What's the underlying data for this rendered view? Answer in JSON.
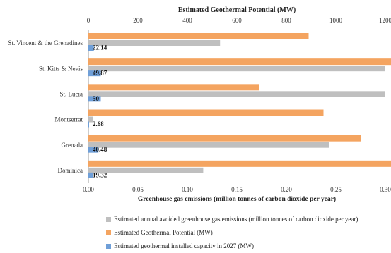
{
  "chart_data": {
    "type": "bar",
    "orientation": "horizontal",
    "categories": [
      "St. Vincent & the Grenadines",
      "St. Kitts & Nevis",
      "St. Lucia",
      "Montserrat",
      "Grenada",
      "Dominica"
    ],
    "top_axis": {
      "label": "Estimated Geothermal Potential (MW)",
      "ticks": [
        "0",
        "200",
        "400",
        "600",
        "800",
        "1000",
        "1200"
      ],
      "range": [
        0,
        1200
      ]
    },
    "bottom_axis": {
      "label": "Greenhouse gas emissions (million tonnes of carbon dioxide per year)",
      "ticks": [
        "0.00",
        "0.05",
        "0.10",
        "0.15",
        "0.20",
        "0.25",
        "0.30"
      ],
      "range": [
        0,
        0.3
      ]
    },
    "series": [
      {
        "name": "Estimated annual avoided greenhouse gas emissions (million tonnes of carbon dioxide per year)",
        "axis": "bottom",
        "color": "#bfbfbf",
        "values": [
          0.133,
          0.3,
          0.3,
          0.005,
          0.243,
          0.116
        ]
      },
      {
        "name": "Estimated Geothermal Potential (MW)",
        "axis": "top",
        "color": "#f4a460",
        "values": [
          890,
          1250,
          690,
          950,
          1100,
          1250
        ]
      },
      {
        "name": "Estimated geothermal installed capacity in 2027 (MW)",
        "axis": "top",
        "color": "#6f9fd8",
        "values": [
          22.14,
          49.87,
          50,
          2.68,
          40.48,
          19.32
        ],
        "data_labels": [
          "22.14",
          "49.87",
          "50",
          "2.68",
          "40.48",
          "19.32"
        ]
      }
    ],
    "grid": false,
    "legend_position": "bottom"
  }
}
